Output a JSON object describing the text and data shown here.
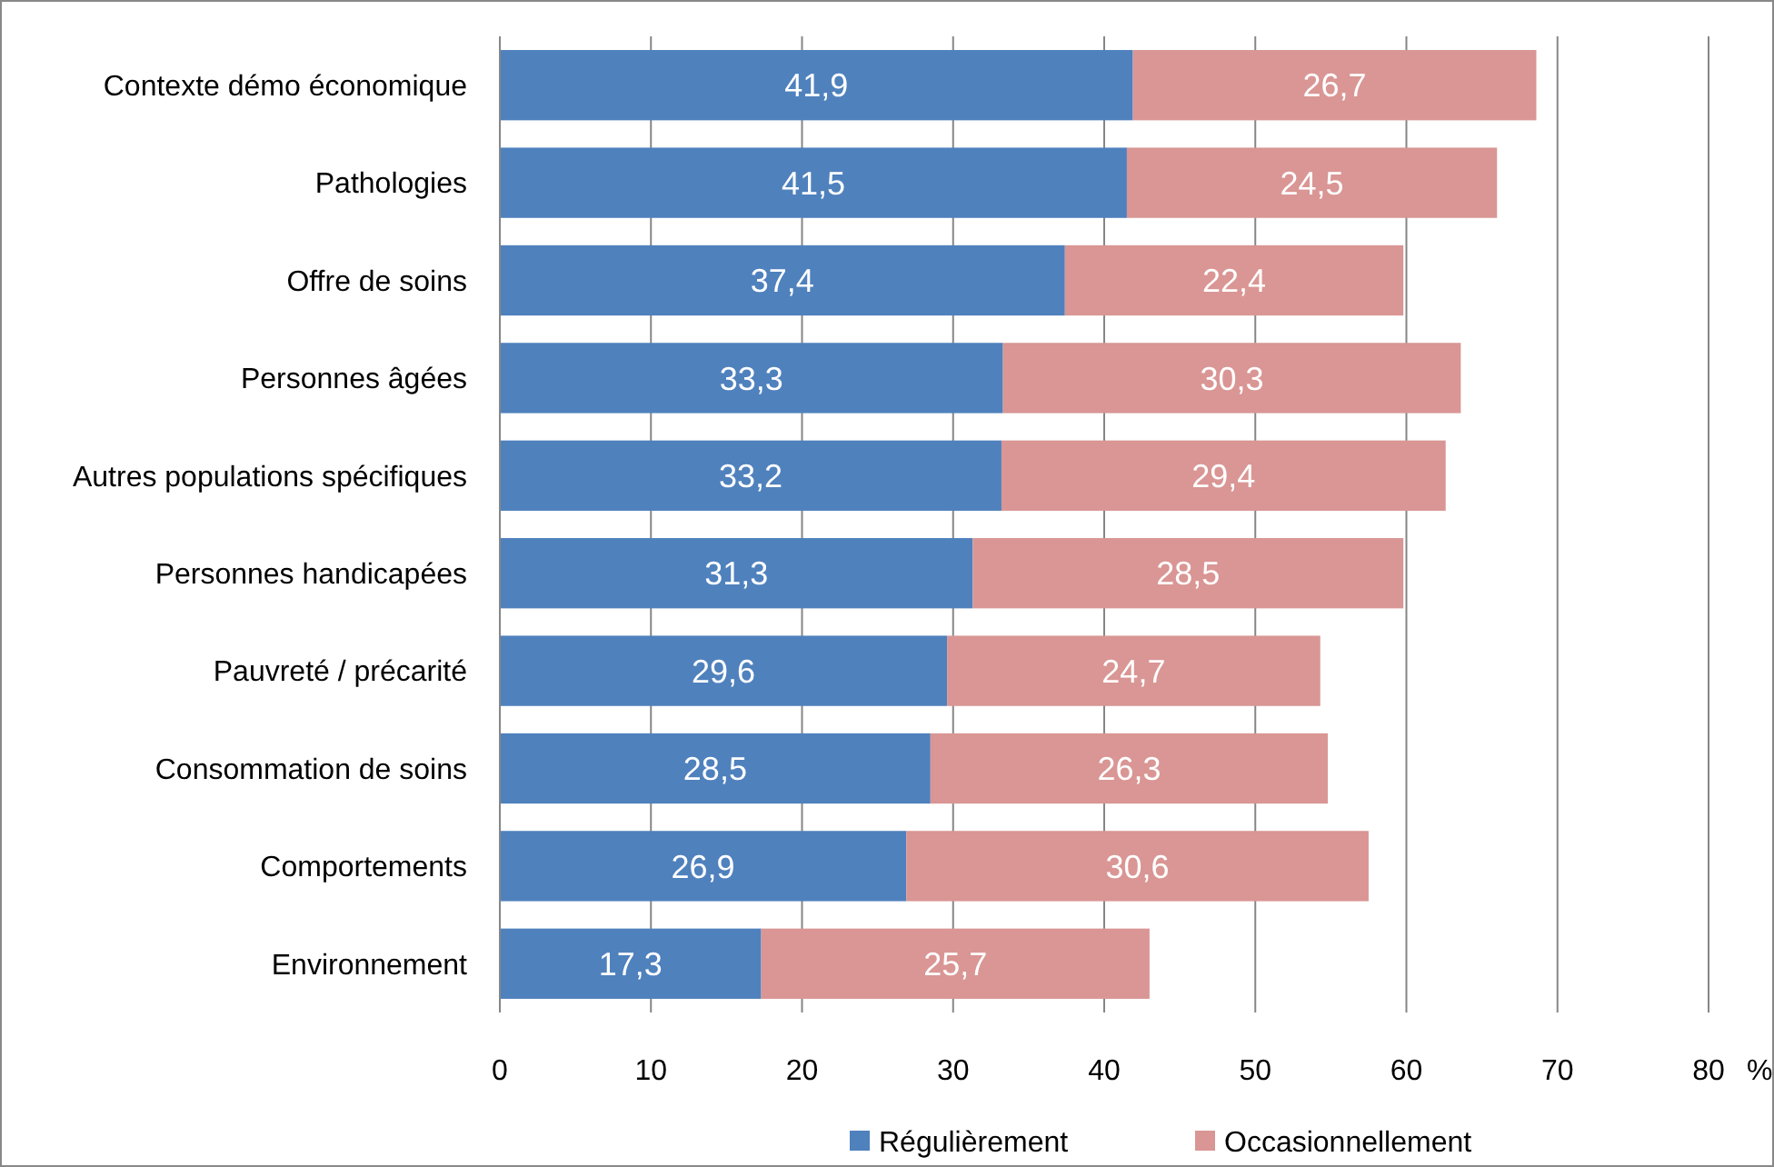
{
  "chart_data": {
    "type": "bar",
    "orientation": "horizontal",
    "stacked": true,
    "xlabel": "%",
    "categories": [
      "Contexte démo économique",
      "Pathologies",
      "Offre de soins",
      "Personnes âgées",
      "Autres populations spécifiques",
      "Personnes handicapées",
      "Pauvreté / précarité",
      "Consommation de soins",
      "Comportements",
      "Environnement"
    ],
    "series": [
      {
        "name": "Régulièrement",
        "color": "#4f81bd",
        "values": [
          41.9,
          41.5,
          37.4,
          33.3,
          33.2,
          31.3,
          29.6,
          28.5,
          26.9,
          17.3
        ],
        "value_labels": [
          "41,9",
          "41,5",
          "37,4",
          "33,3",
          "33,2",
          "31,3",
          "29,6",
          "28,5",
          "26,9",
          "17,3"
        ]
      },
      {
        "name": "Occasionnellement",
        "color": "#d99694",
        "values": [
          26.7,
          24.5,
          22.4,
          30.3,
          29.4,
          28.5,
          24.7,
          26.3,
          30.6,
          25.7
        ],
        "value_labels": [
          "26,7",
          "24,5",
          "22,4",
          "30,3",
          "29,4",
          "28,5",
          "24,7",
          "26,3",
          "30,6",
          "25,7"
        ]
      }
    ],
    "xlim": [
      0,
      80
    ],
    "xticks": [
      0,
      10,
      20,
      30,
      40,
      50,
      60,
      70,
      80
    ],
    "grid": "x",
    "legend": "bottom"
  }
}
